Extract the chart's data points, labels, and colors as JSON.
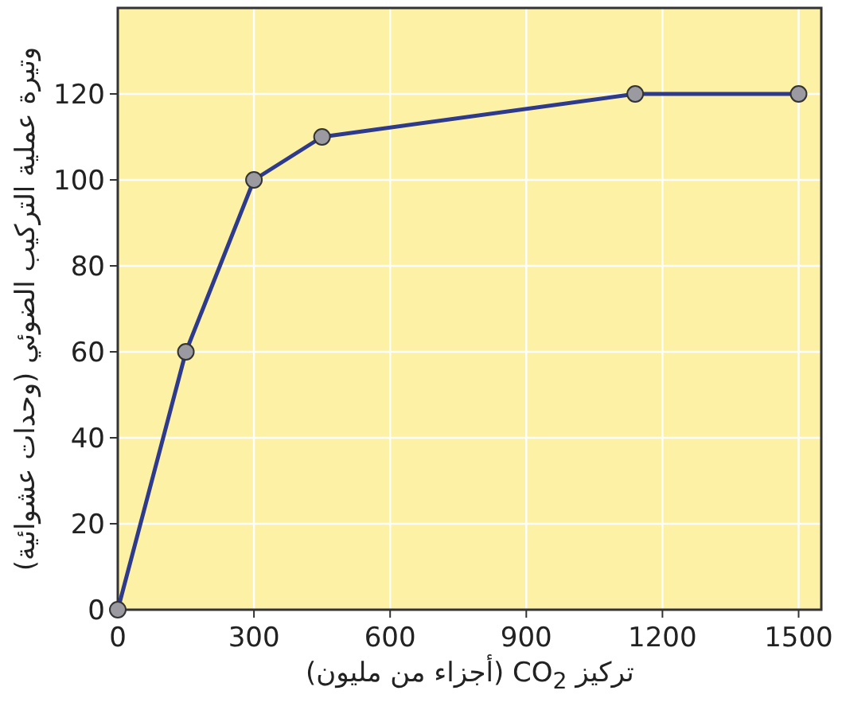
{
  "chart_data": {
    "type": "line",
    "xlabel": "تركيز CO$_{2}$ (أجزاء من مليون)",
    "ylabel": "وتيرة عملية التركيب الضوئي (وحدات عشوائية)",
    "x": [
      0,
      150,
      300,
      450,
      1140,
      1500
    ],
    "series": [
      {
        "color": "#2e3a8c",
        "values": [
          0,
          60,
          100,
          110,
          120,
          120
        ]
      }
    ],
    "xlim": [
      0,
      1550
    ],
    "ylim": [
      0,
      140
    ],
    "xticks": [
      0,
      300,
      600,
      900,
      1200,
      1500
    ],
    "yticks": [
      0,
      20,
      40,
      60,
      80,
      100,
      120
    ],
    "grid": true,
    "marker": "circle",
    "line_style": "solid"
  }
}
